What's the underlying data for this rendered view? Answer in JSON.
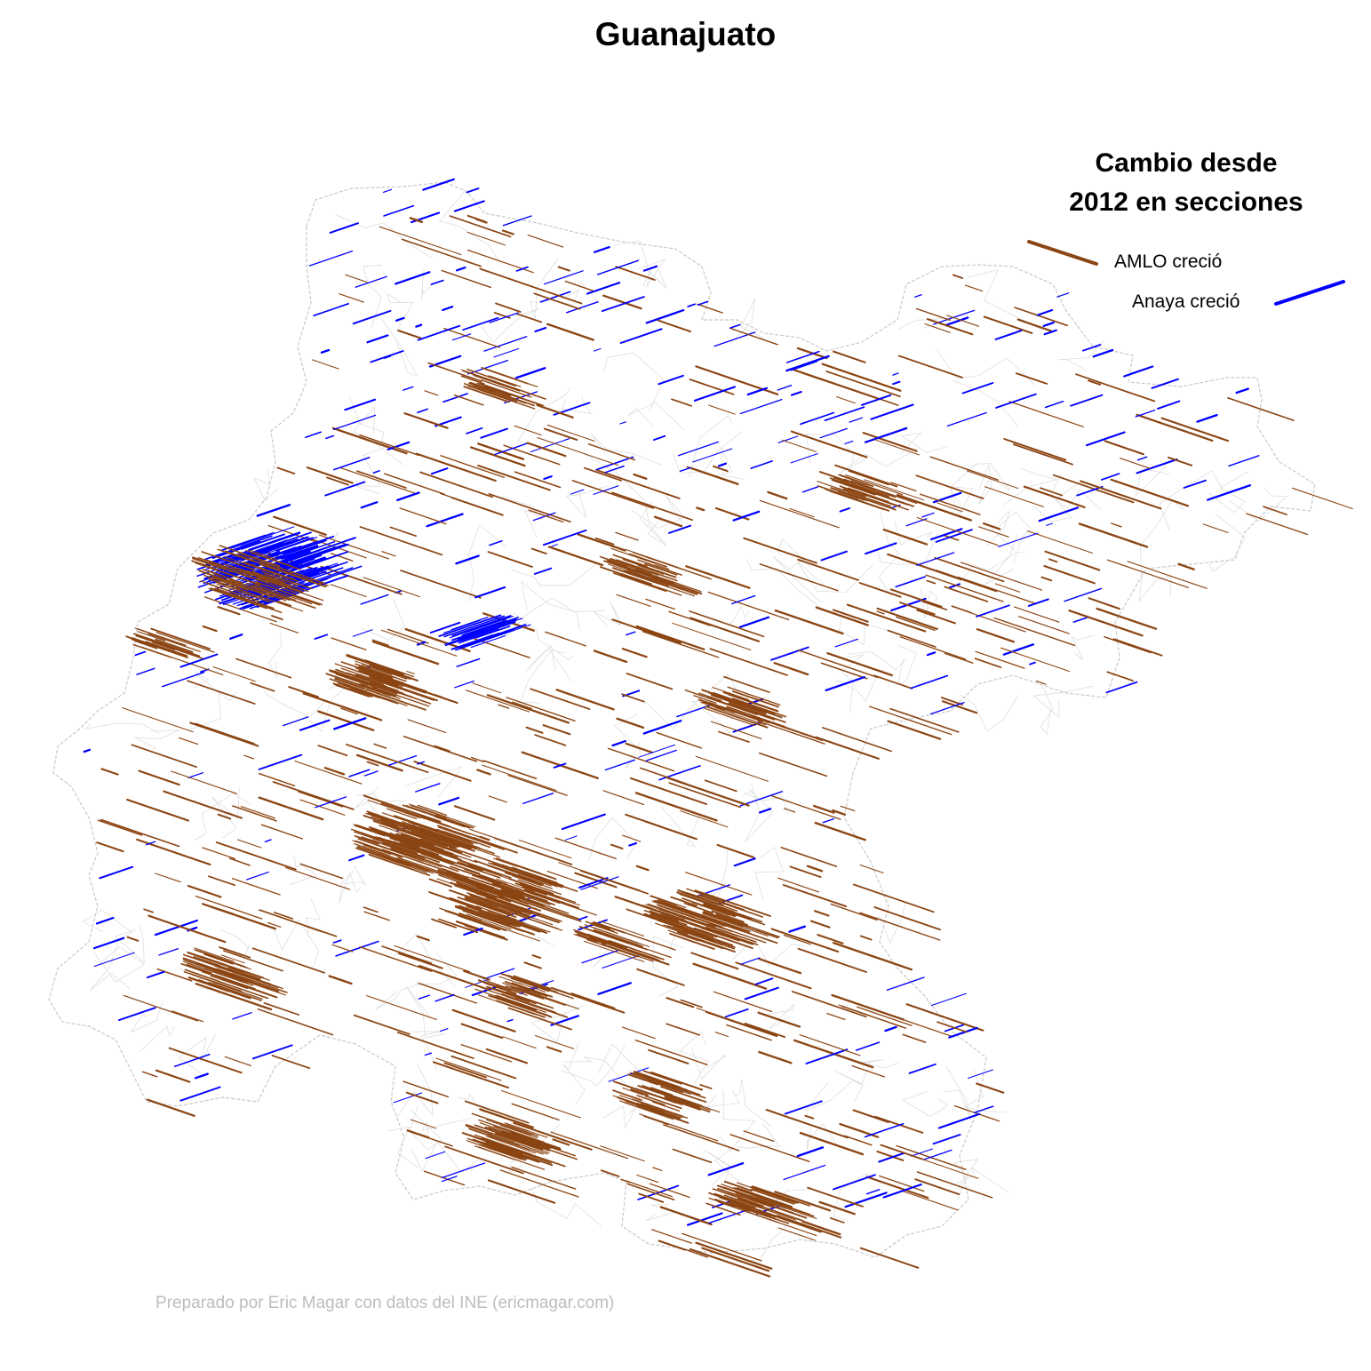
{
  "title": "Guanajuato",
  "legend": {
    "title_line1": "Cambio desde",
    "title_line2": "2012 en secciones",
    "amlo_label": "AMLO creció",
    "anaya_label": "Anaya creció"
  },
  "credit": "Preparado por Eric Magar con datos del INE (ericmagar.com)",
  "colors": {
    "amlo": "#8B4513",
    "anaya": "#0000FF",
    "boundary": "#c8c8c8",
    "credit_text": "#bdbdbd"
  },
  "map": {
    "arrow_direction_amlo": "down-right",
    "arrow_direction_anaya": "up-right"
  }
}
